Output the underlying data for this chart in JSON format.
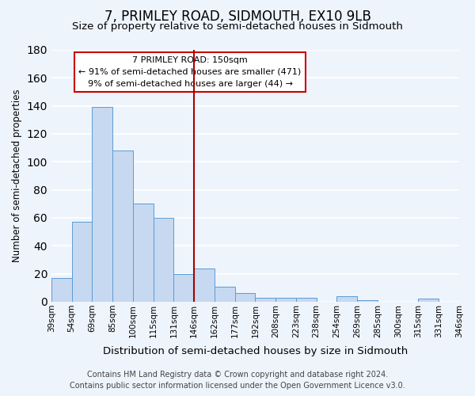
{
  "title": "7, PRIMLEY ROAD, SIDMOUTH, EX10 9LB",
  "subtitle": "Size of property relative to semi-detached houses in Sidmouth",
  "xlabel": "Distribution of semi-detached houses by size in Sidmouth",
  "ylabel": "Number of semi-detached properties",
  "bin_edges": [
    "39sqm",
    "54sqm",
    "69sqm",
    "85sqm",
    "100sqm",
    "115sqm",
    "131sqm",
    "146sqm",
    "162sqm",
    "177sqm",
    "192sqm",
    "208sqm",
    "223sqm",
    "238sqm",
    "254sqm",
    "269sqm",
    "285sqm",
    "300sqm",
    "315sqm",
    "331sqm",
    "346sqm"
  ],
  "bar_values": [
    17,
    57,
    139,
    108,
    70,
    60,
    20,
    24,
    11,
    6,
    3,
    3,
    3,
    0,
    4,
    1,
    0,
    0,
    2,
    0
  ],
  "bar_color": "#c6d9f0",
  "bar_edge_color": "#5b9bd5",
  "vline_color": "#aa0000",
  "annotation_title": "7 PRIMLEY ROAD: 150sqm",
  "annotation_line1": "← 91% of semi-detached houses are smaller (471)",
  "annotation_line2": "9% of semi-detached houses are larger (44) →",
  "annotation_box_color": "#ffffff",
  "annotation_box_edge": "#cc0000",
  "ylim": [
    0,
    180
  ],
  "yticks": [
    0,
    20,
    40,
    60,
    80,
    100,
    120,
    140,
    160,
    180
  ],
  "footer_line1": "Contains HM Land Registry data © Crown copyright and database right 2024.",
  "footer_line2": "Contains public sector information licensed under the Open Government Licence v3.0.",
  "background_color": "#eef4fc",
  "grid_color": "#ffffff",
  "title_fontsize": 12,
  "subtitle_fontsize": 9.5,
  "xlabel_fontsize": 9.5,
  "ylabel_fontsize": 8.5,
  "footer_fontsize": 7
}
